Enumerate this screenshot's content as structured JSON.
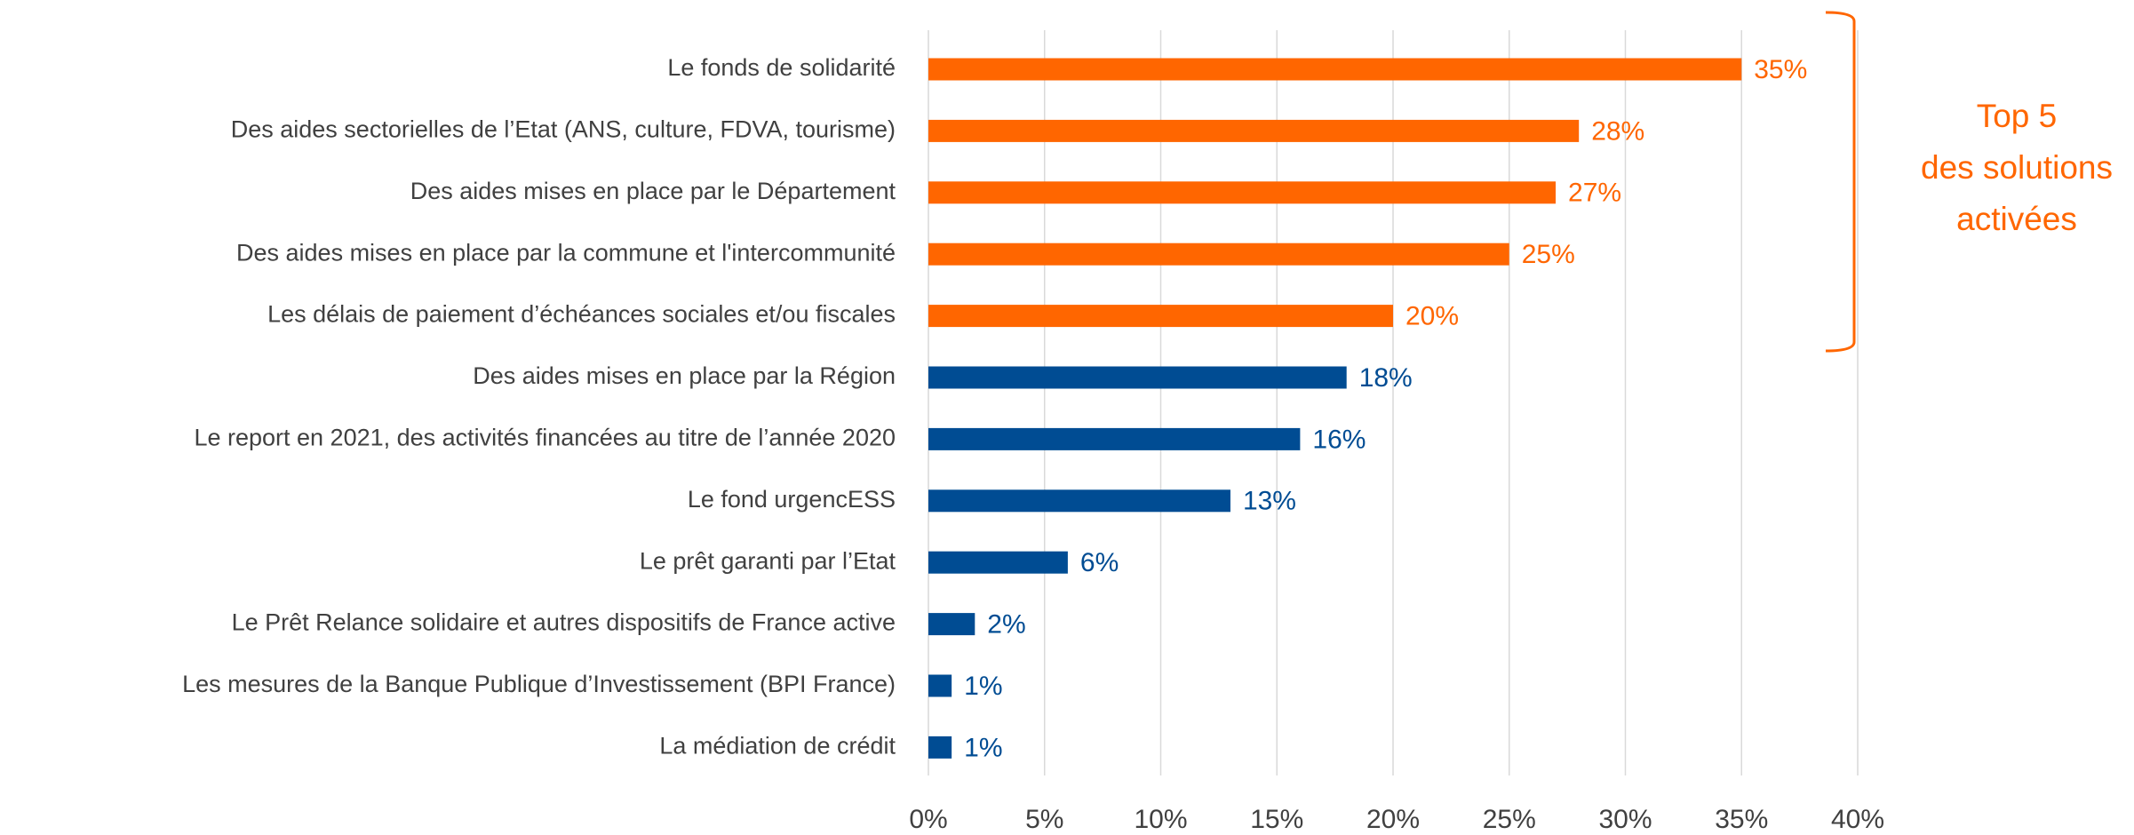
{
  "chart_data": {
    "type": "barh",
    "categories": [
      "Le fonds de solidarité",
      "Des aides sectorielles de l’Etat (ANS, culture, FDVA, tourisme)",
      "Des aides mises en place par le Département",
      "Des aides mises en place par la commune et l'intercommunité",
      "Les délais de paiement d’échéances sociales et/ou fiscales",
      "Des aides mises en place par la Région",
      "Le report en 2021, des activités financées au titre de l’année 2020",
      "Le fond urgencESS",
      "Le prêt garanti par l’Etat",
      "Le Prêt Relance solidaire et autres dispositifs de France active",
      "Les mesures de la Banque Publique d’Investissement (BPI France)",
      "La médiation de crédit"
    ],
    "values": [
      35,
      28,
      27,
      25,
      20,
      18,
      16,
      13,
      6,
      2,
      1,
      1
    ],
    "value_labels": [
      "35%",
      "28%",
      "27%",
      "25%",
      "20%",
      "18%",
      "16%",
      "13%",
      "6%",
      "2%",
      "1%",
      "1%"
    ],
    "colors": [
      "#ff6600",
      "#ff6600",
      "#ff6600",
      "#ff6600",
      "#ff6600",
      "#004c93",
      "#004c93",
      "#004c93",
      "#004c93",
      "#004c93",
      "#004c93",
      "#004c93"
    ],
    "xlim": [
      0,
      40
    ],
    "xticks": [
      {
        "value": 0,
        "label": "0%"
      },
      {
        "value": 5,
        "label": "5%"
      },
      {
        "value": 10,
        "label": "10%"
      },
      {
        "value": 15,
        "label": "15%"
      },
      {
        "value": 20,
        "label": "20%"
      },
      {
        "value": 25,
        "label": "25%"
      },
      {
        "value": 30,
        "label": "30%"
      },
      {
        "value": 35,
        "label": "35%"
      },
      {
        "value": 40,
        "label": "40%"
      }
    ],
    "grid": true,
    "annotation": [
      "Top 5",
      "des solutions",
      "activées"
    ],
    "annotation_color": "#ff6600"
  }
}
